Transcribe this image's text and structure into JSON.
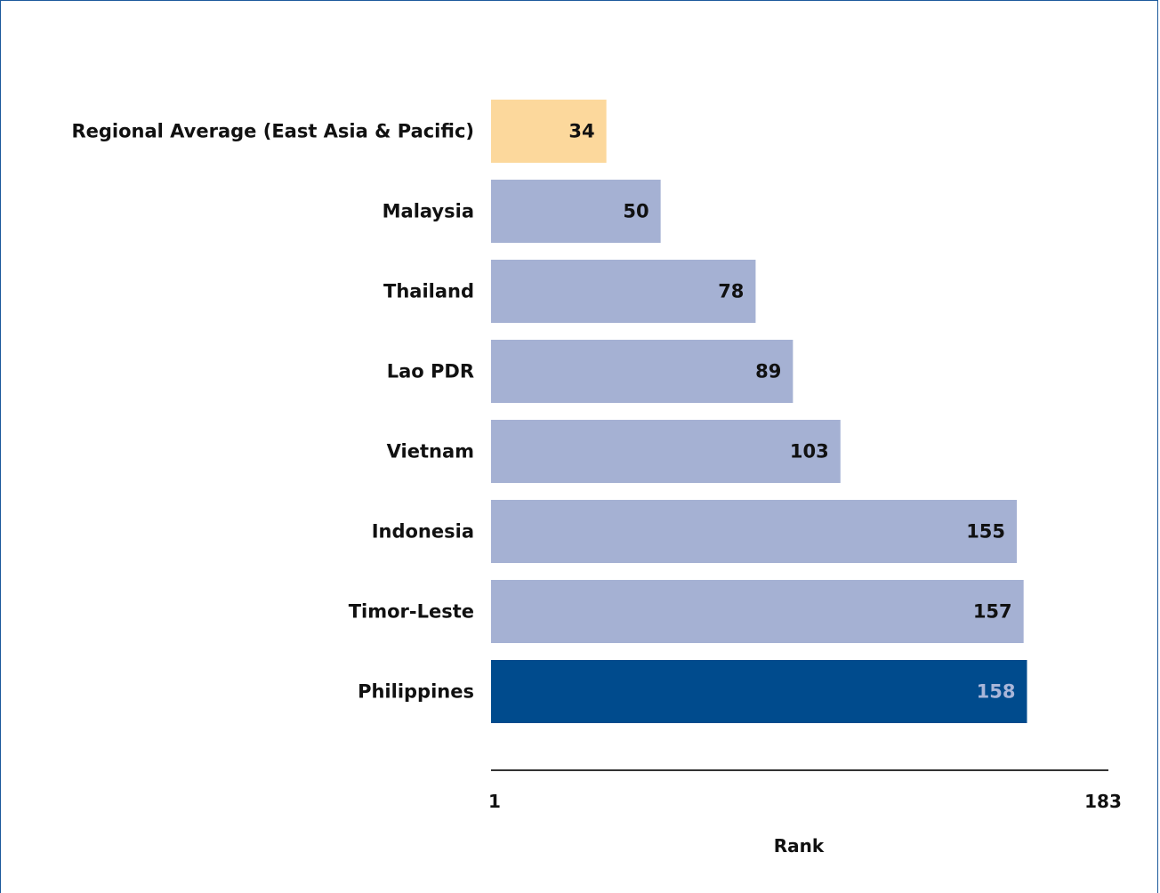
{
  "chart_data": {
    "type": "bar",
    "orientation": "horizontal",
    "title": "",
    "xlabel": "Rank",
    "ylabel": "",
    "categories": [
      "Regional Average (East Asia & Pacific)",
      "Malaysia",
      "Thailand",
      "Lao PDR",
      "Vietnam",
      "Indonesia",
      "Timor-Leste",
      "Philippines"
    ],
    "values": [
      34,
      50,
      78,
      89,
      103,
      155,
      157,
      158
    ],
    "xlim": [
      1,
      183
    ],
    "x_ticks": [
      "1",
      "183"
    ],
    "grid": false,
    "legend": "none",
    "colors": {
      "regional_average": "#fcd89c",
      "default": "#a5b1d3",
      "highlight": "#004b8d",
      "label_default": "#111111",
      "label_highlight": "#a9b6d9"
    },
    "bar_styles": [
      "regional_average",
      "default",
      "default",
      "default",
      "default",
      "default",
      "default",
      "highlight"
    ]
  }
}
